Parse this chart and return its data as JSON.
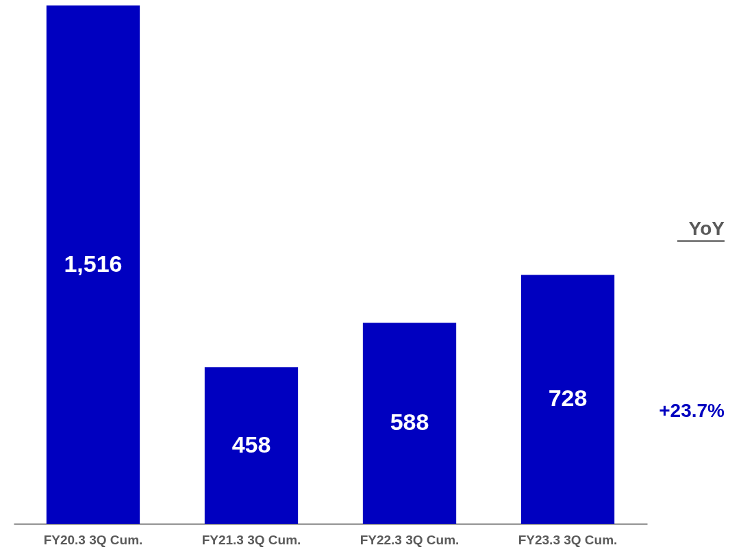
{
  "chart_data": {
    "type": "bar",
    "categories": [
      "FY20.3 3Q Cum.",
      "FY21.3 3Q Cum.",
      "FY22.3 3Q Cum.",
      "FY23.3 3Q Cum."
    ],
    "values": [
      1516,
      458,
      588,
      728
    ],
    "color": "#0000c0",
    "value_labels": [
      "1,516",
      "458",
      "588",
      "728"
    ],
    "annotations": [
      "YoY",
      "+23.7%"
    ]
  }
}
